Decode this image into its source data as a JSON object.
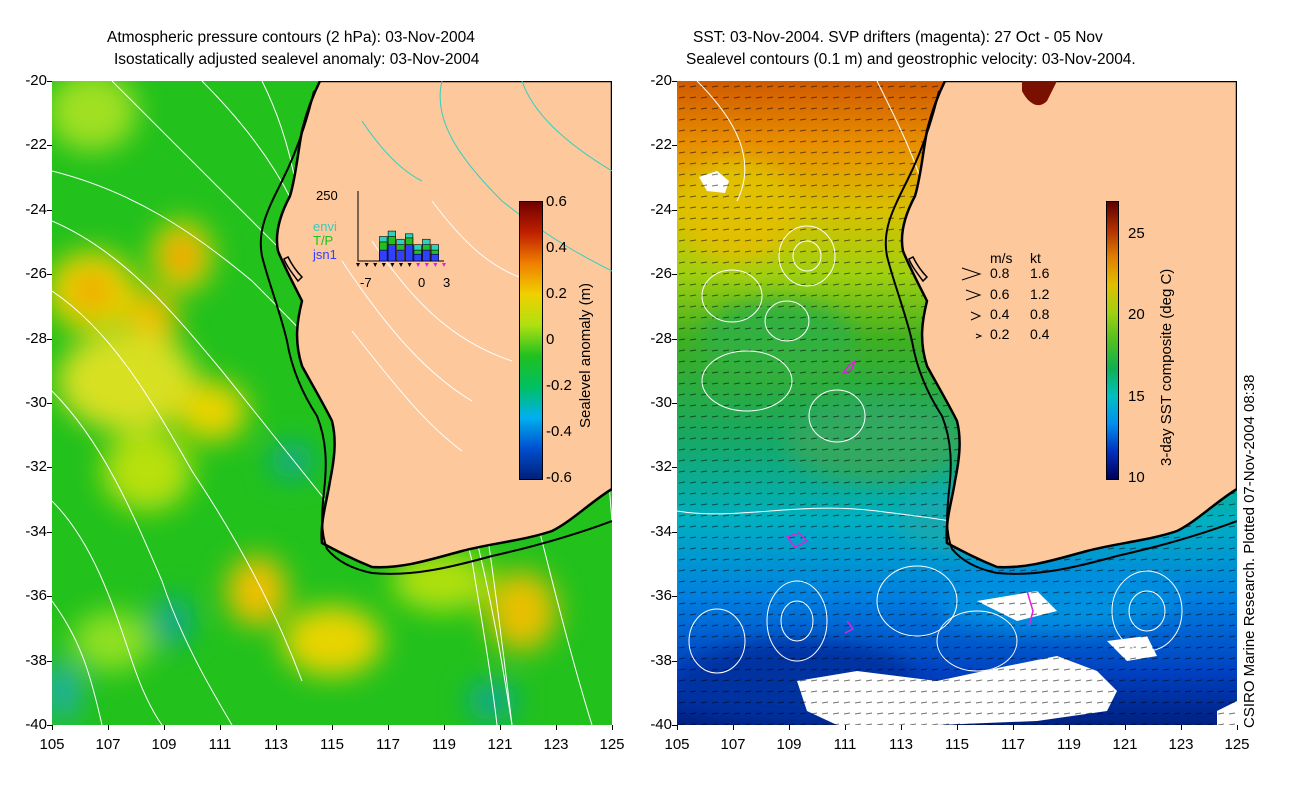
{
  "left": {
    "title_line1": "Atmospheric pressure contours (2 hPa): 03-Nov-2004",
    "title_line2": "Isostatically adjusted sealevel anomaly: 03-Nov-2004",
    "colorbar": {
      "label": "Sealevel anomaly (m)",
      "ticks": [
        "0.6",
        "0.4",
        "0.2",
        "0",
        "-0.2",
        "-0.4",
        "-0.6"
      ],
      "range": [
        -0.6,
        0.6
      ],
      "colors": [
        "#00207a",
        "#0050d0",
        "#00b0f0",
        "#00c060",
        "#20c020",
        "#b0e010",
        "#f0d000",
        "#f08000",
        "#c02000",
        "#700000"
      ]
    },
    "inset": {
      "ymax_label": "250",
      "legend": [
        {
          "name": "envi",
          "color": "#30d0c0"
        },
        {
          "name": "T/P",
          "color": "#20c020"
        },
        {
          "name": "jsn1",
          "color": "#3040ff"
        }
      ],
      "xticks": [
        "-7",
        "0",
        "3"
      ],
      "bars": [
        {
          "day": -4,
          "envi": 90,
          "tp": 70,
          "jsn1": 40
        },
        {
          "day": -3,
          "envi": 110,
          "tp": 90,
          "jsn1": 60
        },
        {
          "day": -2,
          "envi": 80,
          "tp": 60,
          "jsn1": 40
        },
        {
          "day": -1,
          "envi": 100,
          "tp": 85,
          "jsn1": 60
        },
        {
          "day": 0,
          "envi": 60,
          "tp": 40,
          "jsn1": 25
        },
        {
          "day": 1,
          "envi": 80,
          "tp": 60,
          "jsn1": 40
        },
        {
          "day": 2,
          "envi": 60,
          "tp": 40,
          "jsn1": 25
        }
      ]
    }
  },
  "right": {
    "title_line1": "SST: 03-Nov-2004. SVP drifters (magenta): 27 Oct - 05 Nov",
    "title_line2": "Sealevel contours (0.1 m) and geostrophic velocity: 03-Nov-2004.",
    "colorbar": {
      "label": "3-day SST composite (deg C)",
      "ticks": [
        "25",
        "20",
        "15",
        "10"
      ],
      "range": [
        10,
        27
      ],
      "colors": [
        "#00005a",
        "#0030c0",
        "#0090f0",
        "#00c0c0",
        "#10b050",
        "#50c020",
        "#a0d010",
        "#e0c000",
        "#e08000",
        "#b03000",
        "#600000"
      ]
    },
    "velocity_legend": {
      "header_ms": "m/s",
      "header_kt": "kt",
      "rows": [
        {
          "ms": "0.8",
          "kt": "1.6"
        },
        {
          "ms": "0.6",
          "kt": "1.2"
        },
        {
          "ms": "0.4",
          "kt": "0.8"
        },
        {
          "ms": "0.2",
          "kt": "0.4"
        }
      ]
    },
    "credit": "CSIRO Marine Research. Plotted 07-Nov-2004 08:38"
  },
  "axes": {
    "lon_ticks": [
      "105",
      "107",
      "109",
      "111",
      "113",
      "115",
      "117",
      "119",
      "121",
      "123",
      "125"
    ],
    "lat_ticks": [
      "-20",
      "-22",
      "-24",
      "-26",
      "-28",
      "-30",
      "-32",
      "-34",
      "-36",
      "-38",
      "-40"
    ],
    "lon_range": [
      105,
      125
    ],
    "lat_range": [
      -40,
      -20
    ]
  },
  "colors": {
    "land": "#fcc89c",
    "coast": "#000000",
    "contour": "#ffffff",
    "drifter": "#e020e0",
    "background": "#ffffff"
  }
}
